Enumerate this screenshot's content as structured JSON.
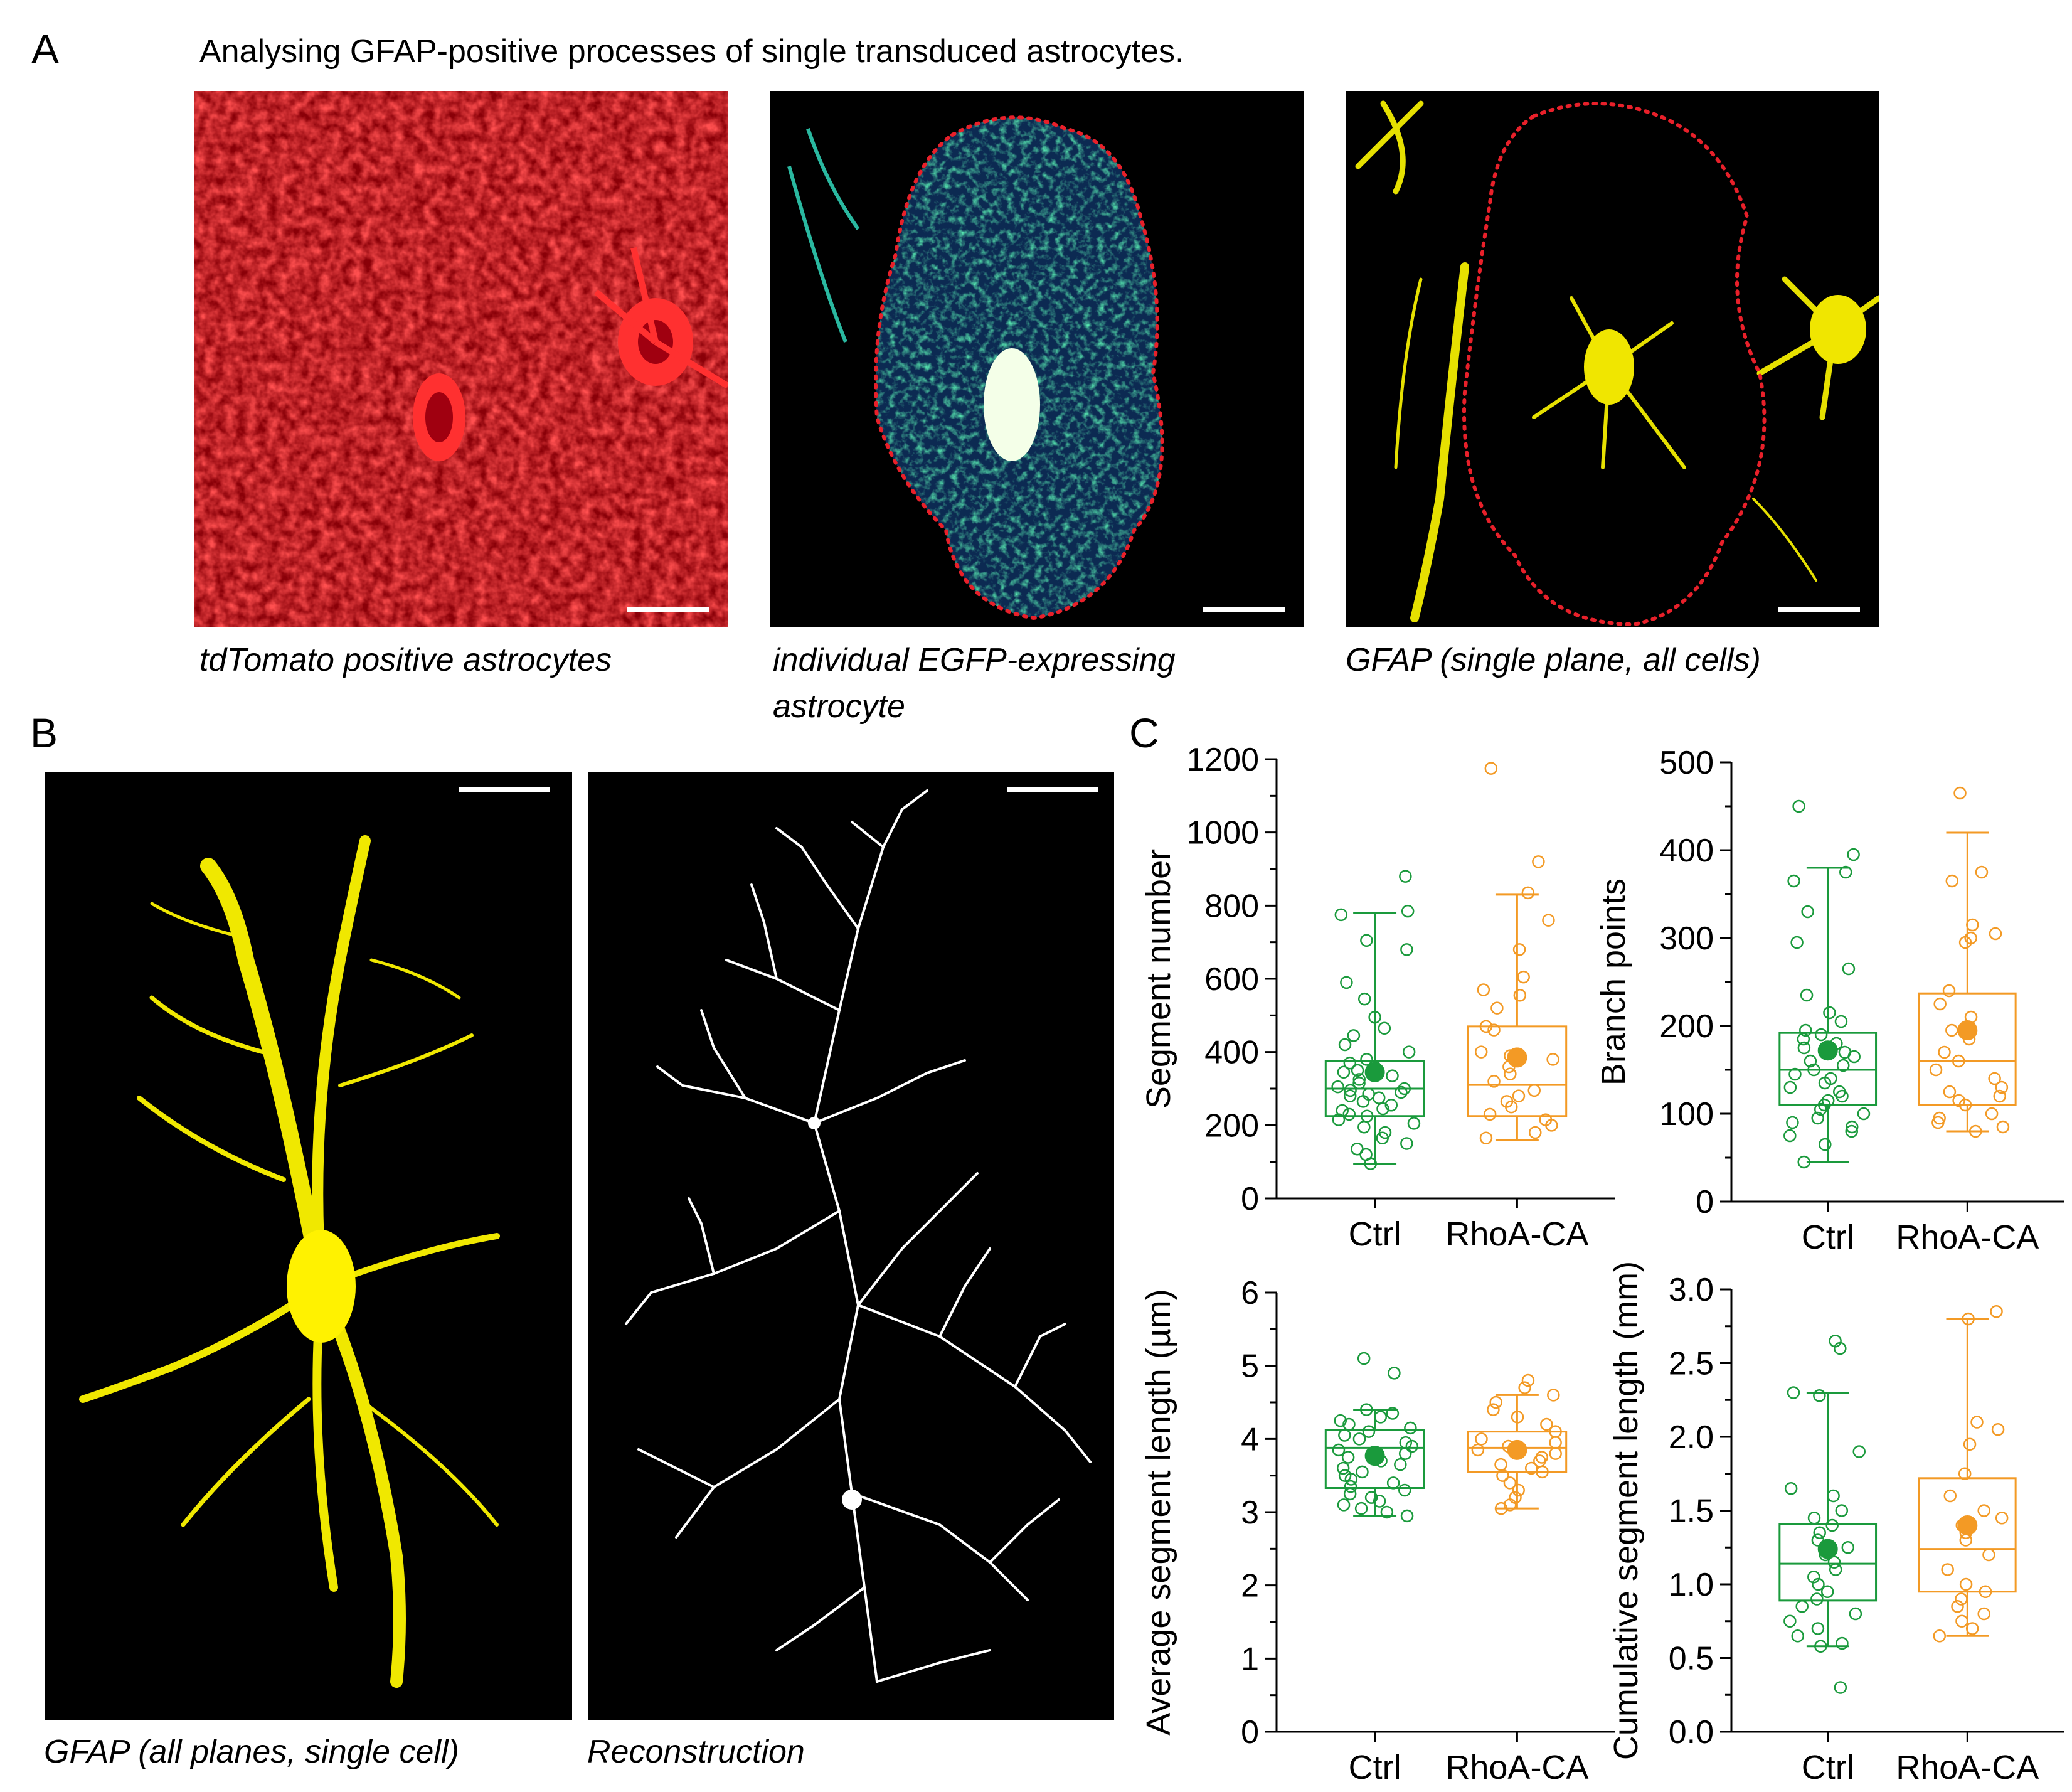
{
  "panels": {
    "A": {
      "letter": "A",
      "header": "Analysing GFAP-positive processes of single transduced astrocytes.",
      "images": [
        {
          "caption": "tdTomato positive astrocytes",
          "color": "#ff1a1a"
        },
        {
          "caption_lines": [
            "individual EGFP-expressing",
            "astrocyte"
          ],
          "color": "#19d94a"
        },
        {
          "caption": "GFAP (single plane, all cells)",
          "color": "#ffee00"
        }
      ],
      "outline_color": "#e8202a"
    },
    "B": {
      "letter": "B",
      "images": [
        {
          "caption": "GFAP (all planes, single cell)",
          "color": "#ffee00"
        },
        {
          "caption": "Reconstruction",
          "color": "#ffffff"
        }
      ]
    },
    "C": {
      "letter": "C"
    }
  },
  "colors": {
    "ctrl": "#1a9a3c",
    "rhoa": "#f39a25"
  },
  "chart_data": [
    {
      "type": "box",
      "ylabel": "Segment number",
      "categories": [
        "Ctrl",
        "RhoA-CA"
      ],
      "ylim": [
        0,
        1200
      ],
      "yticks": [
        0,
        200,
        400,
        600,
        800,
        1000,
        1200
      ],
      "series": [
        {
          "name": "Ctrl",
          "q1": 225,
          "median": 300,
          "q3": 375,
          "whisker_low": 95,
          "whisker_high": 780,
          "mean": 345,
          "points": [
            880,
            785,
            775,
            705,
            680,
            590,
            545,
            495,
            465,
            445,
            420,
            400,
            380,
            370,
            360,
            350,
            345,
            335,
            325,
            315,
            305,
            300,
            295,
            290,
            285,
            280,
            275,
            265,
            255,
            245,
            240,
            230,
            225,
            215,
            205,
            195,
            180,
            165,
            150,
            135,
            120,
            95
          ]
        },
        {
          "name": "RhoA-CA",
          "q1": 225,
          "median": 310,
          "q3": 470,
          "whisker_low": 160,
          "whisker_high": 830,
          "mean": 385,
          "points": [
            1175,
            920,
            835,
            760,
            680,
            605,
            570,
            555,
            520,
            470,
            460,
            400,
            390,
            380,
            360,
            340,
            320,
            295,
            280,
            265,
            250,
            230,
            215,
            200,
            180,
            165
          ]
        }
      ]
    },
    {
      "type": "box",
      "ylabel": "Branch points",
      "categories": [
        "Ctrl",
        "RhoA-CA"
      ],
      "ylim": [
        0,
        500
      ],
      "yticks": [
        0,
        100,
        200,
        300,
        400,
        500
      ],
      "series": [
        {
          "name": "Ctrl",
          "q1": 110,
          "median": 150,
          "q3": 192,
          "whisker_low": 45,
          "whisker_high": 380,
          "mean": 172,
          "points": [
            450,
            395,
            375,
            365,
            330,
            295,
            265,
            235,
            215,
            205,
            195,
            190,
            185,
            180,
            175,
            170,
            165,
            160,
            155,
            150,
            145,
            140,
            135,
            130,
            125,
            120,
            115,
            110,
            105,
            100,
            95,
            90,
            85,
            80,
            75,
            65,
            45
          ]
        },
        {
          "name": "RhoA-CA",
          "q1": 110,
          "median": 160,
          "q3": 237,
          "whisker_low": 80,
          "whisker_high": 420,
          "mean": 195,
          "points": [
            465,
            375,
            365,
            315,
            305,
            300,
            295,
            240,
            225,
            210,
            195,
            185,
            170,
            160,
            150,
            140,
            130,
            125,
            120,
            115,
            110,
            100,
            95,
            90,
            85,
            80
          ]
        }
      ]
    },
    {
      "type": "box",
      "ylabel": "Average segment length (µm)",
      "categories": [
        "Ctrl",
        "RhoA-CA"
      ],
      "ylim": [
        0,
        6
      ],
      "yticks": [
        0,
        1,
        2,
        3,
        4,
        5,
        6
      ],
      "series": [
        {
          "name": "Ctrl",
          "q1": 3.33,
          "median": 3.88,
          "q3": 4.12,
          "whisker_low": 2.95,
          "whisker_high": 4.4,
          "mean": 3.77,
          "points": [
            5.1,
            4.9,
            4.4,
            4.35,
            4.3,
            4.25,
            4.2,
            4.15,
            4.1,
            4.05,
            4.0,
            3.95,
            3.9,
            3.85,
            3.8,
            3.75,
            3.7,
            3.65,
            3.6,
            3.55,
            3.5,
            3.45,
            3.4,
            3.35,
            3.3,
            3.25,
            3.2,
            3.15,
            3.1,
            3.05,
            3.0,
            2.95
          ]
        },
        {
          "name": "RhoA-CA",
          "q1": 3.55,
          "median": 3.88,
          "q3": 4.1,
          "whisker_low": 3.05,
          "whisker_high": 4.6,
          "mean": 3.85,
          "points": [
            4.8,
            4.7,
            4.6,
            4.5,
            4.4,
            4.3,
            4.2,
            4.1,
            4.0,
            3.95,
            3.9,
            3.85,
            3.8,
            3.75,
            3.7,
            3.65,
            3.6,
            3.55,
            3.5,
            3.4,
            3.3,
            3.2,
            3.1,
            3.05
          ]
        }
      ]
    },
    {
      "type": "box",
      "ylabel": "Cumulative segment length (mm)",
      "categories": [
        "Ctrl",
        "RhoA-CA"
      ],
      "ylim": [
        0.0,
        3.0
      ],
      "yticks": [
        0.0,
        0.5,
        1.0,
        1.5,
        2.0,
        2.5,
        3.0
      ],
      "tick_format": "0.0",
      "series": [
        {
          "name": "Ctrl",
          "q1": 0.89,
          "median": 1.14,
          "q3": 1.41,
          "whisker_low": 0.58,
          "whisker_high": 2.3,
          "mean": 1.24,
          "points": [
            2.65,
            2.6,
            2.3,
            2.28,
            1.9,
            1.65,
            1.6,
            1.5,
            1.45,
            1.4,
            1.35,
            1.3,
            1.25,
            1.2,
            1.15,
            1.1,
            1.05,
            1.0,
            0.95,
            0.9,
            0.85,
            0.8,
            0.75,
            0.7,
            0.65,
            0.6,
            0.58,
            0.3
          ]
        },
        {
          "name": "RhoA-CA",
          "q1": 0.95,
          "median": 1.24,
          "q3": 1.72,
          "whisker_low": 0.65,
          "whisker_high": 2.8,
          "mean": 1.4,
          "points": [
            2.85,
            2.8,
            2.1,
            2.05,
            1.95,
            1.75,
            1.6,
            1.5,
            1.45,
            1.4,
            1.35,
            1.3,
            1.2,
            1.1,
            1.0,
            0.95,
            0.9,
            0.85,
            0.8,
            0.75,
            0.7,
            0.65
          ]
        }
      ]
    }
  ]
}
